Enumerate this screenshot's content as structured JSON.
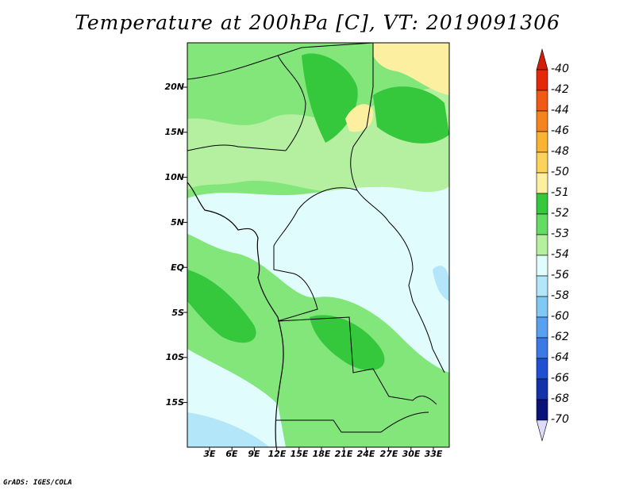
{
  "title": "Temperature at 200hPa [C], VT: 2019091306",
  "credit": "GrADS: IGES/COLA",
  "map": {
    "lat_labels": [
      "20N",
      "15N",
      "10N",
      "5N",
      "EQ",
      "5S",
      "10S",
      "15S"
    ],
    "lon_labels": [
      "3E",
      "6E",
      "9E",
      "12E",
      "15E",
      "18E",
      "21E",
      "24E",
      "27E",
      "30E",
      "33E"
    ]
  },
  "colorbar": {
    "labels": [
      "-40",
      "-42",
      "-44",
      "-46",
      "-48",
      "-50",
      "-51",
      "-52",
      "-53",
      "-54",
      "-56",
      "-58",
      "-60",
      "-62",
      "-64",
      "-66",
      "-68",
      "-70"
    ],
    "colors": [
      "#e6280a",
      "#f05a14",
      "#f5841e",
      "#fab432",
      "#fcd25a",
      "#fcf0a0",
      "#36c83c",
      "#64dc64",
      "#b4f0a0",
      "#e0fcfc",
      "#b4e6fa",
      "#82c8f5",
      "#5aa0f0",
      "#3c78e6",
      "#2050d2",
      "#1432aa",
      "#0a1478",
      "#dcdcfa"
    ],
    "top_arrow_color": "#d21e0a",
    "bottom_arrow_color": "#dcdcfa"
  },
  "map_colors": {
    "ocean_far": "#b4e6fa",
    "light": "#e0fcfc",
    "pale_green": "#b4f0a0",
    "mid_green": "#82e67a",
    "green": "#64dc64",
    "dark_green": "#36c83c",
    "yellow": "#fcf0a0"
  }
}
